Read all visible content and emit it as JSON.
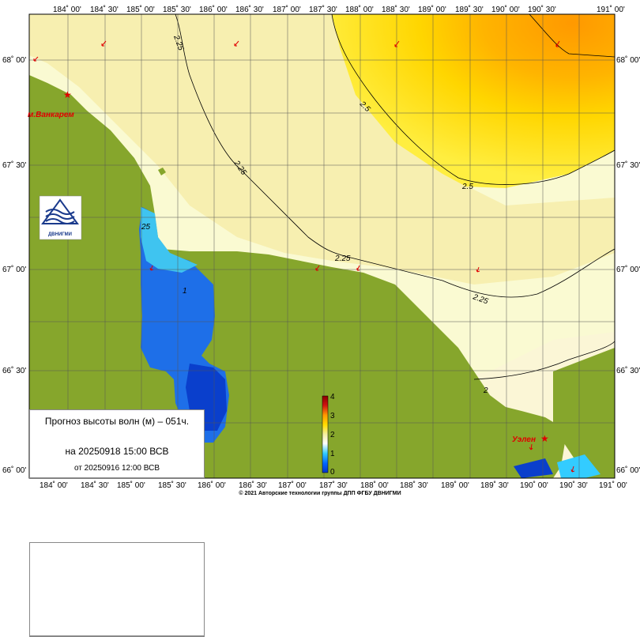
{
  "map": {
    "longitude_labels": [
      "184˚ 00'",
      "184˚ 30'",
      "185˚ 00'",
      "185˚ 30'",
      "186˚ 00'",
      "186˚ 30'",
      "187˚ 00'",
      "187˚ 30'",
      "188˚ 00'",
      "188˚ 30'",
      "189˚ 00'",
      "189˚ 30'",
      "190˚ 00'",
      "190˚ 30'",
      "191˚ 00'"
    ],
    "latitude_labels": [
      "68˚ 00'",
      "67˚ 30'",
      "67˚ 00'",
      "66˚ 30'",
      "66˚ 00'"
    ],
    "contour_labels": [
      "2.25",
      "2.5",
      "2.25",
      "2.5",
      "2.25",
      "2.25",
      "2",
      "25",
      "1"
    ],
    "places": [
      "м.Ванкарем",
      "Уэлен"
    ],
    "logo_text": "ДВНИГМИ"
  },
  "legend": {
    "ticks": [
      "0",
      "1",
      "2",
      "3",
      "4"
    ],
    "colors": [
      "#0033cc",
      "#0080ff",
      "#33ccff",
      "#ffffff",
      "#f5f0a0",
      "#ffe000",
      "#ff9900",
      "#d01010",
      "#880000"
    ]
  },
  "info": {
    "title": "Прогноз высоты волн (м) – 051ч.",
    "valid": "на 20250918 15:00 ВСВ",
    "issued": "от 20250916 12:00 ВСВ"
  },
  "credit": "© 2021 Авторские технологии группы ДПП ФГБУ ДВНИГМИ"
}
